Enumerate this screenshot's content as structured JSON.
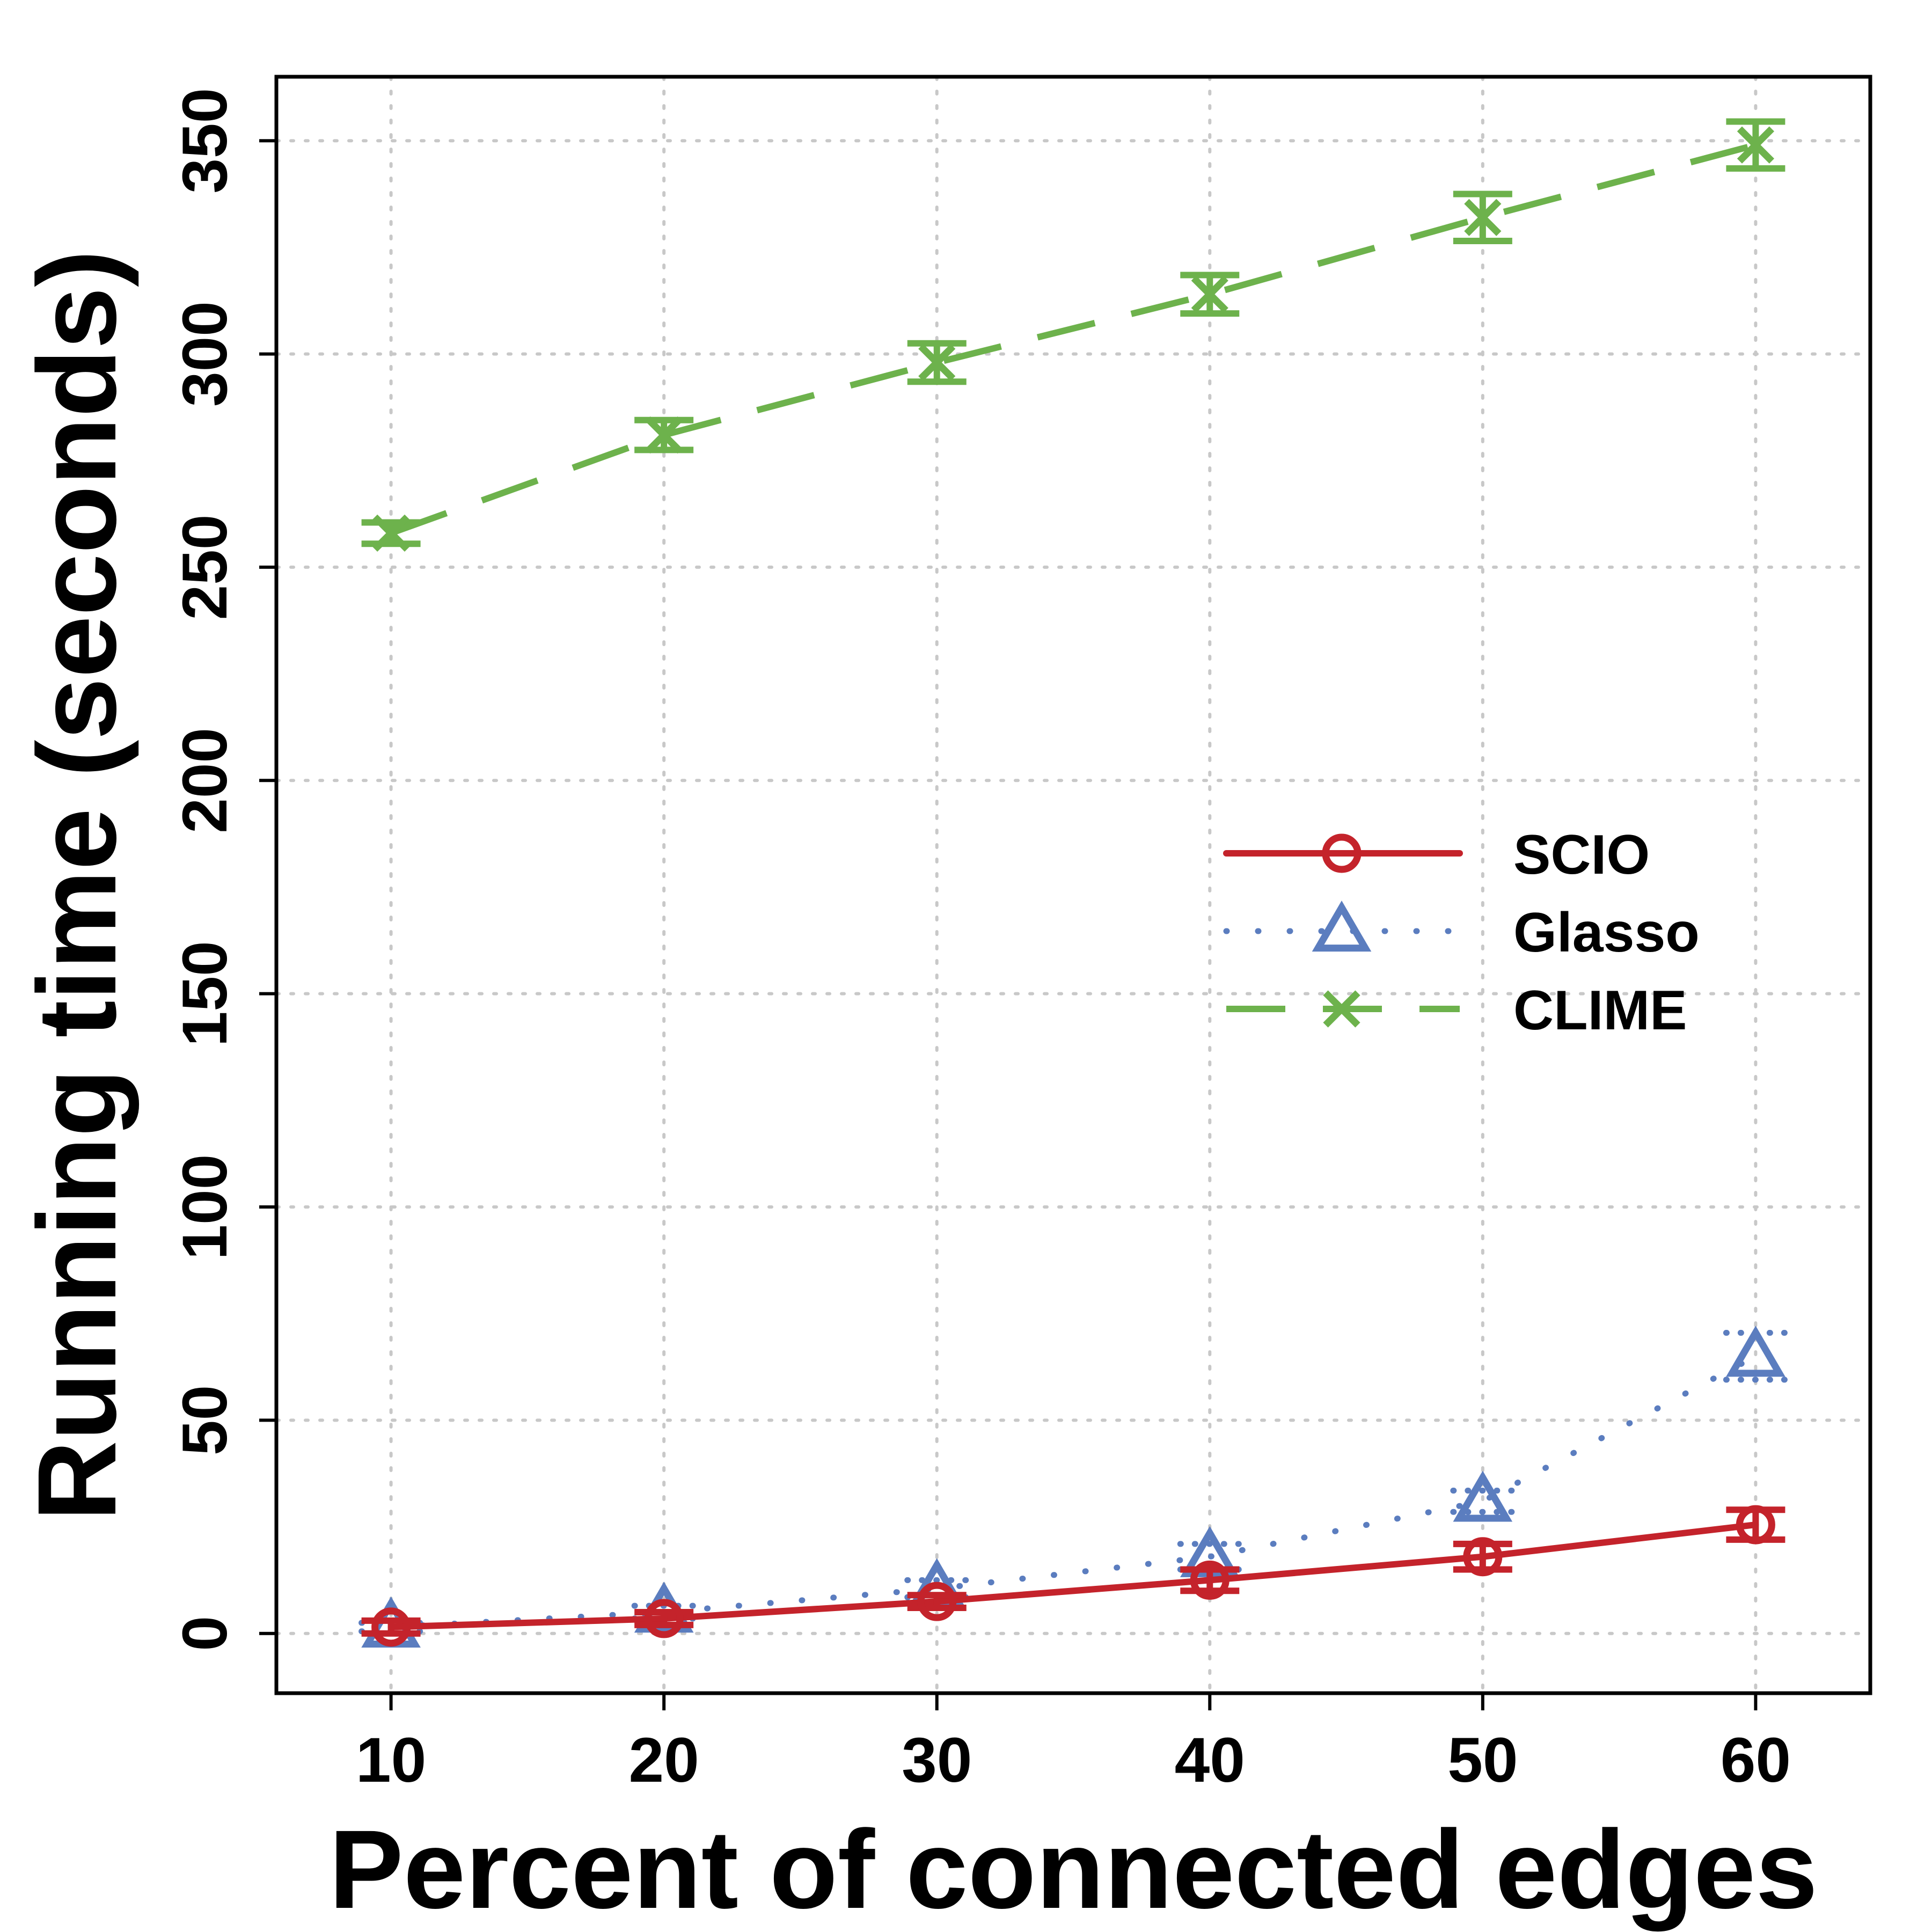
{
  "chart_data": {
    "type": "line",
    "xlabel": "Percent of connected edges",
    "ylabel": "Running time (seconds)",
    "x": [
      10,
      20,
      30,
      40,
      50,
      60
    ],
    "xlim": [
      5.8,
      64.2
    ],
    "ylim": [
      -14,
      365
    ],
    "xticks": [
      10,
      20,
      30,
      40,
      50,
      60
    ],
    "yticks": [
      0,
      50,
      100,
      150,
      200,
      250,
      300,
      350
    ],
    "grid": true,
    "legend_position": "right-center",
    "series": [
      {
        "name": "SCIO",
        "color": "#c4232b",
        "line": "solid",
        "marker": "circle",
        "values": [
          1.5,
          3.5,
          7.5,
          12.5,
          18,
          25.5
        ],
        "error": [
          1.5,
          1.5,
          1.5,
          2.5,
          3,
          3.5
        ]
      },
      {
        "name": "Glasso",
        "color": "#5b7dbf",
        "line": "dotted",
        "marker": "triangle",
        "values": [
          1.5,
          5,
          10.5,
          18,
          31,
          65
        ],
        "error": [
          1,
          1.5,
          2,
          3,
          2.5,
          5.5
        ]
      },
      {
        "name": "CLIME",
        "color": "#6db24c",
        "line": "dashed",
        "marker": "x",
        "values": [
          258,
          281,
          298,
          314,
          332,
          349
        ],
        "error": [
          2.5,
          3.5,
          4.5,
          4.5,
          5.5,
          5.5
        ]
      }
    ]
  }
}
